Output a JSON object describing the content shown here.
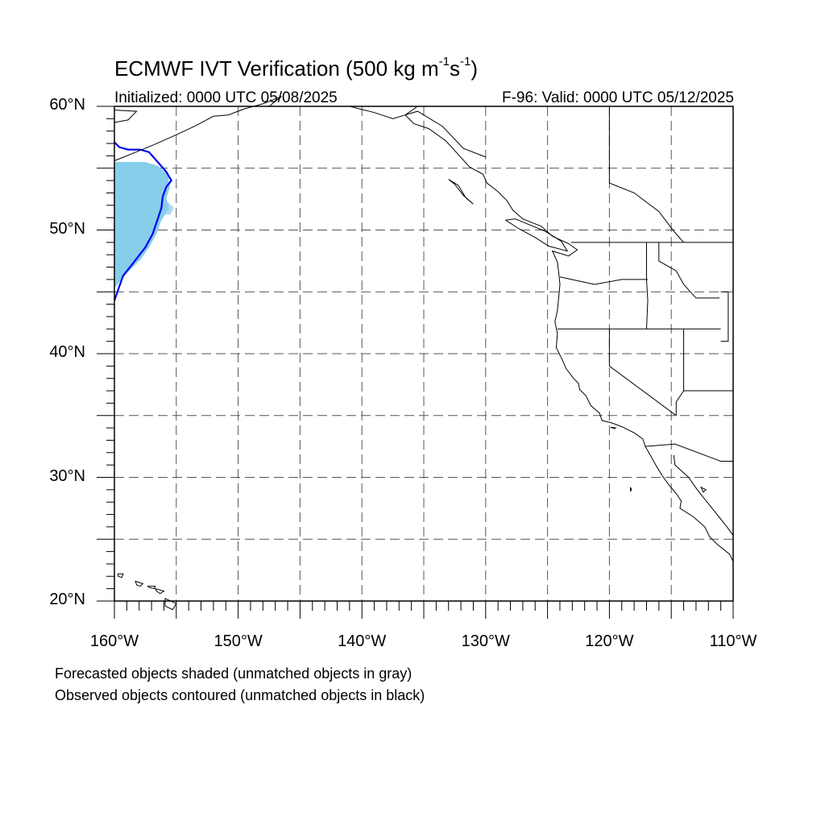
{
  "header": {
    "title_main": "ECMWF IVT Verification (500 kg m",
    "title_sup1": "-1",
    "title_mid": "s",
    "title_sup2": "-1",
    "title_end": ")",
    "initialized": "Initialized: 0000 UTC 05/08/2025",
    "valid": "F-96: Valid: 0000 UTC 05/12/2025"
  },
  "map": {
    "lon_range": [
      -160,
      -110
    ],
    "lat_range": [
      20,
      60
    ],
    "lat_labels": [
      {
        "lat": 60,
        "text": "60°N"
      },
      {
        "lat": 50,
        "text": "50°N"
      },
      {
        "lat": 40,
        "text": "40°N"
      },
      {
        "lat": 30,
        "text": "30°N"
      },
      {
        "lat": 20,
        "text": "20°N"
      }
    ],
    "lon_labels": [
      {
        "lon": -160,
        "text": "160°W"
      },
      {
        "lon": -150,
        "text": "150°W"
      },
      {
        "lon": -140,
        "text": "140°W"
      },
      {
        "lon": -130,
        "text": "130°W"
      },
      {
        "lon": -120,
        "text": "120°W"
      },
      {
        "lon": -110,
        "text": "110°W"
      }
    ],
    "gridlines": {
      "lon_step": 5,
      "lat_step": 5,
      "style": "dashed"
    },
    "colors": {
      "forecast_fill": "#87ceeb",
      "forecast_fill_light": "#b0dcef",
      "observed_contour": "#0000ee",
      "coastline": "#000000",
      "grid": "#555555"
    },
    "forecast_object": {
      "label": "forecast",
      "outline": [
        [
          -160,
          55.5
        ],
        [
          -157.5,
          55.5
        ],
        [
          -156.5,
          55.2
        ],
        [
          -155.7,
          54.5
        ],
        [
          -155.5,
          53.5
        ],
        [
          -155.8,
          52.6
        ],
        [
          -155.6,
          51.7
        ],
        [
          -156.2,
          50.8
        ],
        [
          -156.6,
          49.7
        ],
        [
          -157.2,
          48.6
        ],
        [
          -157.9,
          47.6
        ],
        [
          -159,
          46.5
        ],
        [
          -160,
          45.3
        ]
      ],
      "light_outline": [
        [
          -155.7,
          52.3
        ],
        [
          -155.2,
          51.8
        ],
        [
          -155.5,
          51.2
        ],
        [
          -156.0,
          51.3
        ]
      ]
    },
    "observed_object": {
      "outline": [
        [
          -160,
          57.1
        ],
        [
          -159.6,
          56.7
        ],
        [
          -158.9,
          56.5
        ],
        [
          -157.9,
          56.5
        ],
        [
          -157.2,
          56.3
        ],
        [
          -156.5,
          55.5
        ],
        [
          -155.8,
          54.7
        ],
        [
          -155.4,
          54.0
        ],
        [
          -155.8,
          53.5
        ],
        [
          -156.1,
          52.7
        ],
        [
          -156.2,
          51.8
        ],
        [
          -156.5,
          50.9
        ],
        [
          -156.9,
          49.7
        ],
        [
          -157.5,
          48.6
        ],
        [
          -158.5,
          47.3
        ],
        [
          -159.3,
          46.3
        ],
        [
          -160,
          44.3
        ]
      ]
    }
  },
  "notes": {
    "forecast": "Forecasted objects shaded (unmatched objects in gray)",
    "observed": "Observed objects contoured (unmatched objects in black)"
  }
}
